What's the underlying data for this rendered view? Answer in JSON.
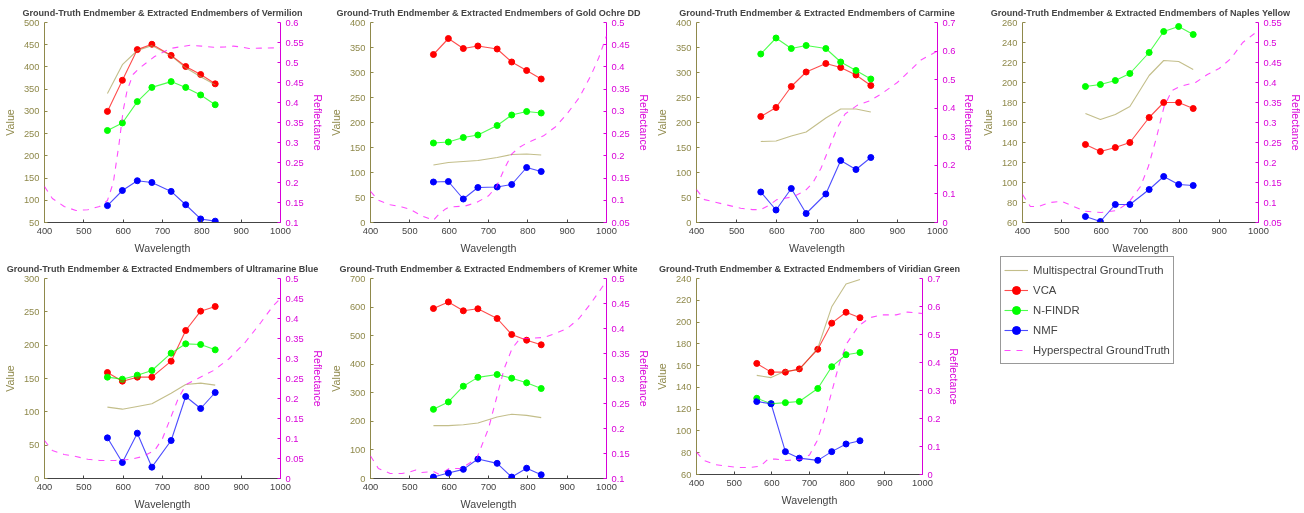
{
  "chart_data": [
    {
      "type": "line",
      "title": "Ground-Truth Endmember & Extracted Endmembers of Vermilion",
      "xlabel": "Wavelength",
      "ylabel": "Value",
      "y2label": "Reflectance",
      "x": [
        560,
        598,
        636,
        673,
        722,
        759,
        797,
        834
      ],
      "xlim": [
        400,
        1000
      ],
      "xticks": [
        400,
        500,
        600,
        700,
        800,
        900,
        1000
      ],
      "ylim": [
        50,
        500
      ],
      "yticks": [
        50,
        100,
        150,
        200,
        250,
        300,
        350,
        400,
        450,
        500
      ],
      "y2lim": [
        0.1,
        0.6
      ],
      "y2ticks": [
        0.1,
        0.15,
        0.2,
        0.25,
        0.3,
        0.35,
        0.4,
        0.45,
        0.5,
        0.55,
        0.6
      ],
      "series": [
        {
          "color": "#a9a259",
          "marker": "none",
          "values": [
            340,
            405,
            437,
            448,
            425,
            398,
            378,
            360
          ]
        },
        {
          "color": "#ff0000",
          "marker": "circle",
          "values": [
            300,
            370,
            439,
            451,
            426,
            401,
            383,
            362
          ]
        },
        {
          "color": "#00ff00",
          "marker": "circle",
          "values": [
            257,
            274,
            322,
            354,
            367,
            354,
            337,
            315
          ]
        },
        {
          "color": "#0000ff",
          "marker": "circle",
          "values": [
            88,
            122,
            144,
            140,
            120,
            90,
            58,
            53
          ]
        },
        {
          "color": "#ff00ff",
          "marker": "none",
          "line_style": "dashed",
          "axis": "y2",
          "x": [
            400,
            420,
            450,
            480,
            510,
            540,
            560,
            575,
            590,
            600,
            610,
            625,
            640,
            660,
            680,
            700,
            720,
            750,
            770,
            800,
            830,
            860,
            880,
            900,
            920,
            950,
            1000
          ],
          "values": [
            0.19,
            0.16,
            0.14,
            0.13,
            0.132,
            0.14,
            0.155,
            0.2,
            0.3,
            0.38,
            0.43,
            0.47,
            0.485,
            0.5,
            0.515,
            0.525,
            0.535,
            0.54,
            0.543,
            0.541,
            0.538,
            0.539,
            0.541,
            0.539,
            0.535,
            0.536,
            0.537
          ]
        }
      ]
    },
    {
      "type": "line",
      "title": "Ground-Truth Endmember & Extracted Endmembers of Gold Ochre DD",
      "xlabel": "Wavelength",
      "ylabel": "Value",
      "y2label": "Reflectance",
      "x": [
        560,
        598,
        636,
        673,
        722,
        759,
        797,
        834
      ],
      "xlim": [
        400,
        1000
      ],
      "xticks": [
        400,
        500,
        600,
        700,
        800,
        900,
        1000
      ],
      "ylim": [
        0,
        400
      ],
      "yticks": [
        0,
        50,
        100,
        150,
        200,
        250,
        300,
        350,
        400
      ],
      "y2lim": [
        0.05,
        0.5
      ],
      "y2ticks": [
        0.05,
        0.1,
        0.15,
        0.2,
        0.25,
        0.3,
        0.35,
        0.4,
        0.45,
        0.5
      ],
      "series": [
        {
          "color": "#a9a259",
          "marker": "none",
          "values": [
            115,
            120,
            122,
            124,
            130,
            136,
            137,
            135
          ]
        },
        {
          "color": "#ff0000",
          "marker": "circle",
          "values": [
            336,
            368,
            348,
            353,
            347,
            321,
            304,
            287
          ]
        },
        {
          "color": "#00ff00",
          "marker": "circle",
          "values": [
            159,
            161,
            170,
            175,
            194,
            215,
            222,
            219
          ]
        },
        {
          "color": "#0000ff",
          "marker": "circle",
          "values": [
            81,
            82,
            47,
            70,
            71,
            76,
            110,
            102
          ]
        },
        {
          "color": "#ff00ff",
          "marker": "none",
          "line_style": "dashed",
          "axis": "y2",
          "x": [
            400,
            420,
            450,
            480,
            500,
            530,
            560,
            570,
            590,
            600,
            640,
            670,
            700,
            720,
            740,
            760,
            780,
            800,
            840,
            870,
            900,
            930,
            960,
            980,
            1000
          ],
          "values": [
            0.12,
            0.1,
            0.09,
            0.085,
            0.08,
            0.065,
            0.055,
            0.065,
            0.08,
            0.085,
            0.087,
            0.095,
            0.11,
            0.13,
            0.17,
            0.205,
            0.22,
            0.23,
            0.245,
            0.265,
            0.295,
            0.33,
            0.38,
            0.42,
            0.47
          ]
        }
      ]
    },
    {
      "type": "line",
      "title": "Ground-Truth Endmember & Extracted Endmembers of Carmine",
      "xlabel": "Wavelength",
      "ylabel": "Value",
      "y2label": "Reflectance",
      "x": [
        560,
        598,
        636,
        673,
        722,
        759,
        797,
        834
      ],
      "xlim": [
        400,
        1000
      ],
      "xticks": [
        400,
        500,
        600,
        700,
        800,
        900,
        1000
      ],
      "ylim": [
        0,
        400
      ],
      "yticks": [
        0,
        50,
        100,
        150,
        200,
        250,
        300,
        350,
        400
      ],
      "y2lim": [
        0,
        0.7
      ],
      "y2ticks": [
        0,
        0.1,
        0.2,
        0.3,
        0.4,
        0.5,
        0.6,
        0.7
      ],
      "series": [
        {
          "color": "#a9a259",
          "marker": "none",
          "values": [
            162,
            163,
            173,
            181,
            209,
            227,
            227,
            221
          ]
        },
        {
          "color": "#ff0000",
          "marker": "circle",
          "values": [
            212,
            230,
            272,
            301,
            318,
            310,
            295,
            274
          ]
        },
        {
          "color": "#00ff00",
          "marker": "circle",
          "values": [
            337,
            369,
            348,
            354,
            348,
            321,
            304,
            287
          ]
        },
        {
          "color": "#0000ff",
          "marker": "circle",
          "values": [
            61,
            25,
            68,
            18,
            57,
            124,
            106,
            130
          ]
        },
        {
          "color": "#ff00ff",
          "marker": "none",
          "line_style": "dashed",
          "axis": "y2",
          "x": [
            400,
            420,
            450,
            480,
            510,
            540,
            560,
            580,
            600,
            640,
            670,
            690,
            710,
            730,
            750,
            770,
            800,
            830,
            860,
            900,
            930,
            960,
            1000
          ],
          "values": [
            0.115,
            0.08,
            0.07,
            0.06,
            0.05,
            0.045,
            0.045,
            0.06,
            0.08,
            0.09,
            0.11,
            0.14,
            0.19,
            0.26,
            0.33,
            0.38,
            0.41,
            0.425,
            0.45,
            0.49,
            0.53,
            0.57,
            0.6
          ]
        }
      ]
    },
    {
      "type": "line",
      "title": "Ground-Truth Endmember & Extracted Endmembers of Naples Yellow",
      "xlabel": "Wavelength",
      "ylabel": "Value",
      "y2label": "Reflectance",
      "x": [
        560,
        598,
        636,
        673,
        722,
        759,
        797,
        834
      ],
      "xlim": [
        400,
        1000
      ],
      "xticks": [
        400,
        500,
        600,
        700,
        800,
        900,
        1000
      ],
      "ylim": [
        60,
        260
      ],
      "yticks": [
        60,
        80,
        100,
        120,
        140,
        160,
        180,
        200,
        220,
        240,
        260
      ],
      "y2lim": [
        0.05,
        0.55
      ],
      "y2ticks": [
        0.05,
        0.1,
        0.15,
        0.2,
        0.25,
        0.3,
        0.35,
        0.4,
        0.45,
        0.5,
        0.55
      ],
      "series": [
        {
          "color": "#a9a259",
          "marker": "none",
          "values": [
            169,
            163,
            168,
            176,
            207,
            222,
            221,
            213
          ]
        },
        {
          "color": "#ff0000",
          "marker": "circle",
          "values": [
            138,
            131,
            135,
            140,
            165,
            180,
            180,
            174
          ]
        },
        {
          "color": "#00ff00",
          "marker": "circle",
          "values": [
            196,
            198,
            202,
            209,
            230,
            251,
            256,
            248
          ]
        },
        {
          "color": "#0000ff",
          "marker": "circle",
          "values": [
            66,
            61,
            78,
            78,
            93,
            106,
            98,
            97
          ]
        },
        {
          "color": "#ff00ff",
          "marker": "none",
          "line_style": "dashed",
          "axis": "y2",
          "x": [
            400,
            420,
            440,
            470,
            500,
            530,
            560,
            600,
            640,
            670,
            700,
            720,
            740,
            760,
            780,
            800,
            840,
            870,
            900,
            930,
            960,
            1000
          ],
          "values": [
            0.12,
            0.09,
            0.09,
            0.1,
            0.103,
            0.09,
            0.078,
            0.075,
            0.08,
            0.1,
            0.14,
            0.19,
            0.26,
            0.34,
            0.38,
            0.39,
            0.4,
            0.42,
            0.435,
            0.46,
            0.5,
            0.53
          ]
        }
      ]
    },
    {
      "type": "line",
      "title": "Ground-Truth Endmember & Extracted Endmembers of Ultramarine Blue",
      "xlabel": "Wavelength",
      "ylabel": "Value",
      "y2label": "Reflectance",
      "x": [
        560,
        598,
        636,
        673,
        722,
        759,
        797,
        834
      ],
      "xlim": [
        400,
        1000
      ],
      "xticks": [
        400,
        500,
        600,
        700,
        800,
        900,
        1000
      ],
      "ylim": [
        0,
        300
      ],
      "yticks": [
        0,
        50,
        100,
        150,
        200,
        250,
        300
      ],
      "y2lim": [
        0,
        0.5
      ],
      "y2ticks": [
        0,
        0.05,
        0.1,
        0.15,
        0.2,
        0.25,
        0.3,
        0.35,
        0.4,
        0.45,
        0.5
      ],
      "series": [
        {
          "color": "#a9a259",
          "marker": "none",
          "values": [
            107,
            104,
            108,
            112,
            128,
            141,
            143,
            140
          ]
        },
        {
          "color": "#ff0000",
          "marker": "circle",
          "values": [
            159,
            146,
            152,
            152,
            176,
            222,
            251,
            258
          ]
        },
        {
          "color": "#00ff00",
          "marker": "circle",
          "values": [
            152,
            149,
            155,
            162,
            188,
            202,
            201,
            193
          ]
        },
        {
          "color": "#0000ff",
          "marker": "circle",
          "values": [
            61,
            24,
            68,
            17,
            57,
            123,
            105,
            129
          ]
        },
        {
          "color": "#ff00ff",
          "marker": "none",
          "line_style": "dashed",
          "axis": "y2",
          "x": [
            400,
            420,
            450,
            480,
            510,
            540,
            580,
            620,
            650,
            680,
            700,
            720,
            740,
            760,
            790,
            830,
            870,
            910,
            950,
            980,
            1000
          ],
          "values": [
            0.095,
            0.07,
            0.06,
            0.055,
            0.048,
            0.045,
            0.045,
            0.048,
            0.055,
            0.07,
            0.1,
            0.15,
            0.2,
            0.235,
            0.25,
            0.27,
            0.3,
            0.34,
            0.39,
            0.43,
            0.45
          ]
        }
      ]
    },
    {
      "type": "line",
      "title": "Ground-Truth Endmember & Extracted Endmembers of Kremer White",
      "xlabel": "Wavelength",
      "ylabel": "Value",
      "y2label": "Reflectance",
      "x": [
        560,
        598,
        636,
        673,
        722,
        759,
        797,
        834
      ],
      "xlim": [
        400,
        1000
      ],
      "xticks": [
        400,
        500,
        600,
        700,
        800,
        900,
        1000
      ],
      "ylim": [
        0,
        700
      ],
      "yticks": [
        0,
        100,
        200,
        300,
        400,
        500,
        600,
        700
      ],
      "y2lim": [
        0.1,
        0.5
      ],
      "y2ticks": [
        0.1,
        0.15,
        0.2,
        0.25,
        0.3,
        0.35,
        0.4,
        0.45,
        0.5
      ],
      "series": [
        {
          "color": "#a9a259",
          "marker": "none",
          "values": [
            185,
            185,
            188,
            194,
            215,
            225,
            221,
            213
          ]
        },
        {
          "color": "#ff0000",
          "marker": "circle",
          "values": [
            595,
            618,
            587,
            594,
            560,
            504,
            484,
            468
          ]
        },
        {
          "color": "#00ff00",
          "marker": "circle",
          "values": [
            242,
            268,
            323,
            354,
            364,
            351,
            335,
            315
          ]
        },
        {
          "color": "#0000ff",
          "marker": "circle",
          "values": [
            5,
            19,
            32,
            68,
            53,
            5,
            36,
            13
          ]
        },
        {
          "color": "#ff00ff",
          "marker": "none",
          "line_style": "dashed",
          "axis": "y2",
          "x": [
            400,
            420,
            450,
            480,
            500,
            515,
            530,
            560,
            575,
            600,
            630,
            670,
            700,
            720,
            740,
            760,
            780,
            800,
            840,
            870,
            900,
            930,
            960,
            1000
          ],
          "values": [
            0.145,
            0.12,
            0.11,
            0.11,
            0.113,
            0.117,
            0.112,
            0.114,
            0.108,
            0.12,
            0.12,
            0.14,
            0.2,
            0.26,
            0.32,
            0.36,
            0.38,
            0.38,
            0.382,
            0.39,
            0.4,
            0.42,
            0.45,
            0.495
          ]
        }
      ]
    },
    {
      "type": "line",
      "title": "Ground-Truth Endmember & Extracted Endmembers of Viridian Green",
      "xlabel": "Wavelength",
      "ylabel": "Value",
      "y2label": "Reflectance",
      "legend": "right",
      "x": [
        560,
        598,
        636,
        673,
        722,
        759,
        797,
        834
      ],
      "xlim": [
        400,
        1000
      ],
      "xticks": [
        400,
        500,
        600,
        700,
        800,
        900,
        1000
      ],
      "ylim": [
        60,
        240
      ],
      "yticks": [
        60,
        80,
        100,
        120,
        140,
        160,
        180,
        200,
        220,
        240
      ],
      "y2lim": [
        0,
        0.7
      ],
      "y2ticks": [
        0,
        0.1,
        0.2,
        0.3,
        0.4,
        0.5,
        0.6,
        0.7
      ],
      "series": [
        {
          "name": "Multispectral GroundTruth",
          "color": "#a9a259",
          "marker": "none",
          "values": [
            151,
            149,
            155,
            156,
            176,
            214,
            235,
            239
          ]
        },
        {
          "name": "VCA",
          "color": "#ff0000",
          "marker": "circle",
          "values": [
            162,
            154,
            154,
            157,
            175,
            199,
            209,
            204
          ]
        },
        {
          "name": "N-FINDR",
          "color": "#00ff00",
          "marker": "circle",
          "values": [
            130,
            125,
            126,
            127,
            139,
            159,
            170,
            172
          ]
        },
        {
          "name": "NMF",
          "color": "#0000ff",
          "marker": "circle",
          "values": [
            127,
            125,
            81,
            75,
            73,
            81,
            88,
            91
          ]
        },
        {
          "name": "Hyperspectral GroundTruth",
          "color": "#ff00ff",
          "marker": "none",
          "line_style": "dashed",
          "axis": "y2",
          "x": [
            400,
            420,
            450,
            480,
            510,
            540,
            570,
            590,
            610,
            640,
            680,
            700,
            720,
            740,
            760,
            780,
            800,
            830,
            860,
            890,
            930,
            960,
            1000
          ],
          "values": [
            0.08,
            0.05,
            0.035,
            0.03,
            0.025,
            0.025,
            0.03,
            0.055,
            0.055,
            0.05,
            0.055,
            0.07,
            0.12,
            0.2,
            0.3,
            0.4,
            0.47,
            0.53,
            0.56,
            0.57,
            0.57,
            0.58,
            0.575
          ]
        }
      ]
    }
  ]
}
